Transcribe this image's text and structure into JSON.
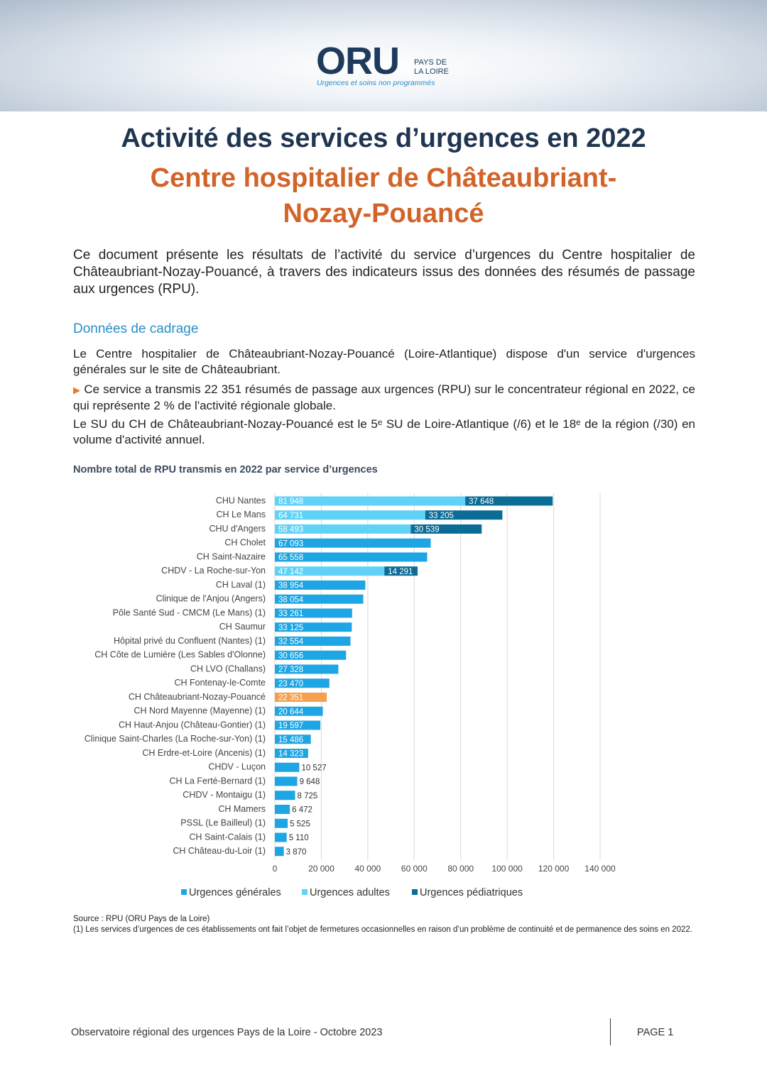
{
  "header": {
    "logo": "ORU",
    "logo_region_1": "PAYS DE",
    "logo_region_2": "LA LOIRE",
    "logo_tagline": "Urgences et soins non programmés"
  },
  "title": "Activité des services d’urgences en 2022",
  "subtitle": "Centre hospitalier de Châteaubriant-Nozay-Pouancé",
  "intro": "Ce document présente les résultats de l’activité du service d’urgences du Centre hospitalier de Châteaubriant-Nozay-Pouancé, à travers des indicateurs issus des données des résumés de passage aux urgences (RPU).",
  "section_title": "Données de cadrage",
  "paragraphs": [
    "Le Centre hospitalier de Châteaubriant-Nozay-Pouancé (Loire-Atlantique) dispose d'un service d'urgences générales sur le site de Châteaubriant.",
    "Ce service a transmis 22 351 résumés de passage aux urgences (RPU) sur le concentrateur régional en 2022, ce qui représente 2 % de l'activité régionale globale.",
    "Le SU du CH de Châteaubriant-Nozay-Pouancé est le 5ᵉ SU de Loire-Atlantique (/6) et le 18ᵉ de la région (/30) en volume d'activité annuel."
  ],
  "chart_data": {
    "type": "bar",
    "orientation": "horizontal",
    "stacked": true,
    "title": "Nombre total de RPU transmis en 2022 par service d’urgences",
    "categories": [
      "CHU Nantes",
      "CH Le Mans",
      "CHU d'Angers",
      "CH Cholet",
      "CH Saint-Nazaire",
      "CHDV - La Roche-sur-Yon",
      "CH Laval (1)",
      "Clinique de l'Anjou (Angers)",
      "Pôle Santé Sud - CMCM (Le Mans) (1)",
      "CH Saumur",
      "Hôpital privé du Confluent (Nantes) (1)",
      "CH Côte de Lumière (Les Sables d'Olonne)",
      "CH LVO (Challans)",
      "CH Fontenay-le-Comte",
      "CH Châteaubriant-Nozay-Pouancé",
      "CH Nord Mayenne (Mayenne) (1)",
      "CH Haut-Anjou (Château-Gontier) (1)",
      "Clinique Saint-Charles (La Roche-sur-Yon) (1)",
      "CH Erdre-et-Loire (Ancenis) (1)",
      "CHDV - Luçon",
      "CH La Ferté-Bernard (1)",
      "CHDV - Montaigu (1)",
      "CH Mamers",
      "PSSL (Le Bailleul) (1)",
      "CH Saint-Calais (1)",
      "CH Château-du-Loir (1)"
    ],
    "series": [
      {
        "name": "Urgences générales",
        "color": "#1ea5e3",
        "values": [
          null,
          null,
          null,
          67093,
          65558,
          null,
          38954,
          38054,
          33261,
          33125,
          32554,
          30656,
          27328,
          23470,
          22351,
          20644,
          19597,
          15486,
          14323,
          10527,
          9648,
          8725,
          6472,
          5525,
          5110,
          3870
        ],
        "value_labels": [
          null,
          null,
          null,
          "67 093",
          "65 558",
          null,
          "38 954",
          "38 054",
          "33 261",
          "33 125",
          "32 554",
          "30 656",
          "27 328",
          "23 470",
          "22 351",
          "20 644",
          "19 597",
          "15 486",
          "14 323",
          "10 527",
          "9 648",
          "8 725",
          "6 472",
          "5 525",
          "5 110",
          "3 870"
        ],
        "highlight_index": 14,
        "highlight_color": "#f5a04e"
      },
      {
        "name": "Urgences adultes",
        "color": "#5fd2f6",
        "values": [
          81948,
          64731,
          58493,
          null,
          null,
          47142,
          null,
          null,
          null,
          null,
          null,
          null,
          null,
          null,
          null,
          null,
          null,
          null,
          null,
          null,
          null,
          null,
          null,
          null,
          null,
          null
        ],
        "value_labels": [
          "81 948",
          "64 731",
          "58 493",
          null,
          null,
          "47 142",
          null,
          null,
          null,
          null,
          null,
          null,
          null,
          null,
          null,
          null,
          null,
          null,
          null,
          null,
          null,
          null,
          null,
          null,
          null,
          null
        ]
      },
      {
        "name": "Urgences pédiatriques",
        "color": "#0b6c96",
        "values": [
          37648,
          33205,
          30539,
          null,
          null,
          14291,
          null,
          null,
          null,
          null,
          null,
          null,
          null,
          null,
          null,
          null,
          null,
          null,
          null,
          null,
          null,
          null,
          null,
          null,
          null,
          null
        ],
        "value_labels": [
          "37 648",
          "33 205",
          "30 539",
          null,
          null,
          "14 291",
          null,
          null,
          null,
          null,
          null,
          null,
          null,
          null,
          null,
          null,
          null,
          null,
          null,
          null,
          null,
          null,
          null,
          null,
          null,
          null
        ]
      }
    ],
    "xlim": [
      0,
      140000
    ],
    "xticks": [
      0,
      {
        "value": 20000,
        "label": "20 000"
      },
      {
        "value": 40000,
        "label": "40 000"
      },
      {
        "value": 60000,
        "label": "60 000"
      },
      {
        "value": 80000,
        "label": "80 000"
      },
      {
        "value": 100000,
        "label": "100 000"
      },
      {
        "value": 120000,
        "label": "120 000"
      },
      {
        "value": 140000,
        "label": "140 000"
      }
    ],
    "grid": true,
    "legend": "bottom"
  },
  "notes": [
    "Source : RPU (ORU Pays de la Loire)",
    "(1) Les services d’urgences de ces établissements ont fait l’objet de fermetures occasionnelles en raison d’un problème de continuité et de permanence des soins en 2022."
  ],
  "footer": {
    "text": "Observatoire régional des urgences Pays de la Loire - Octobre 2023",
    "page": "PAGE 1"
  }
}
